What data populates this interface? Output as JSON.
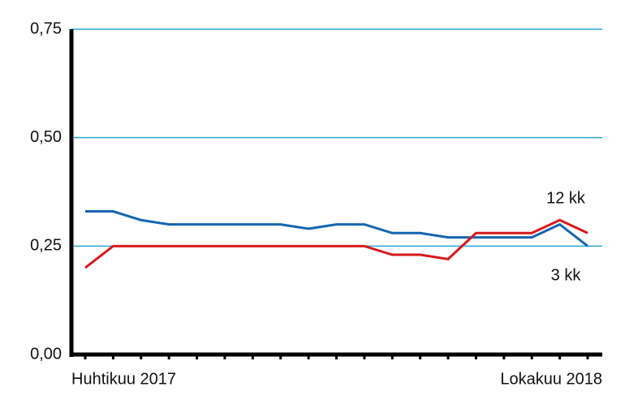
{
  "chart_data": {
    "type": "line",
    "categories": [
      "Huhtikuu 2017",
      null,
      null,
      null,
      null,
      null,
      null,
      null,
      null,
      null,
      null,
      null,
      null,
      null,
      null,
      null,
      null,
      null,
      "Lokakuu 2018"
    ],
    "series": [
      {
        "name": "3 kk",
        "color": "#1565b0",
        "values": [
          0.33,
          0.33,
          0.31,
          0.3,
          0.3,
          0.3,
          0.3,
          0.3,
          0.29,
          0.3,
          0.3,
          0.28,
          0.28,
          0.27,
          0.27,
          0.27,
          0.27,
          0.3,
          0.25
        ]
      },
      {
        "name": "12 kk",
        "color": "#d7191c",
        "values": [
          0.2,
          0.25,
          0.25,
          0.25,
          0.25,
          0.25,
          0.25,
          0.25,
          0.25,
          0.25,
          0.25,
          0.23,
          0.23,
          0.22,
          0.28,
          0.28,
          0.28,
          0.31,
          0.28
        ]
      }
    ],
    "ylim": [
      0,
      0.75
    ],
    "yticks": [
      {
        "value": 0,
        "label": "0,00"
      },
      {
        "value": 0.25,
        "label": "0,25"
      },
      {
        "value": 0.5,
        "label": "0,50"
      },
      {
        "value": 0.75,
        "label": "0,75"
      }
    ],
    "grid": true,
    "grid_color": "#2aa7d8"
  }
}
